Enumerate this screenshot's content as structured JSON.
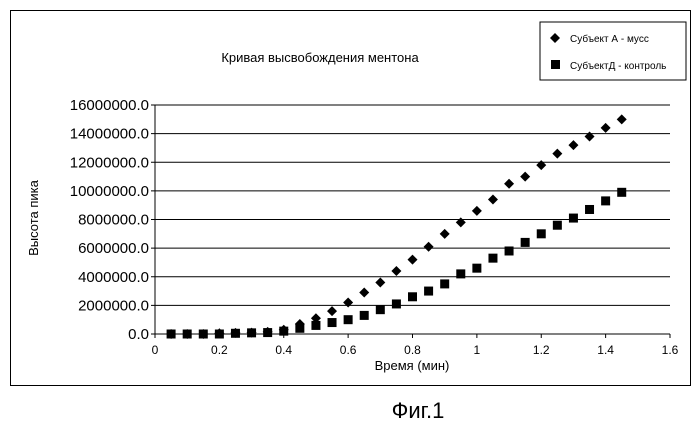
{
  "chart_data": {
    "type": "scatter",
    "title": "Кривая высвобождения ментона",
    "xlabel": "Время (мин)",
    "ylabel": "Высота пика",
    "xlim": [
      0,
      1.6
    ],
    "ylim": [
      0,
      16000000
    ],
    "x_ticks": [
      "0",
      "0.2",
      "0.4",
      "0.6",
      "0.8",
      "1",
      "1.2",
      "1.4",
      "1.6"
    ],
    "y_ticks": [
      "0.0",
      "2000000.0",
      "4000000.0",
      "6000000.0",
      "8000000.0",
      "10000000.0",
      "12000000.0",
      "14000000.0",
      "16000000.0"
    ],
    "grid": "horizontal",
    "legend_position": "top-right",
    "series": [
      {
        "name": "Субъект А - мусс",
        "marker": "diamond",
        "points": [
          [
            0.05,
            0
          ],
          [
            0.1,
            0
          ],
          [
            0.15,
            0
          ],
          [
            0.2,
            50000
          ],
          [
            0.25,
            80000
          ],
          [
            0.3,
            100000
          ],
          [
            0.35,
            150000
          ],
          [
            0.4,
            300000
          ],
          [
            0.45,
            700000
          ],
          [
            0.5,
            1100000
          ],
          [
            0.55,
            1600000
          ],
          [
            0.6,
            2200000
          ],
          [
            0.65,
            2900000
          ],
          [
            0.7,
            3600000
          ],
          [
            0.75,
            4400000
          ],
          [
            0.8,
            5200000
          ],
          [
            0.85,
            6100000
          ],
          [
            0.9,
            7000000
          ],
          [
            0.95,
            7800000
          ],
          [
            1.0,
            8600000
          ],
          [
            1.05,
            9400000
          ],
          [
            1.1,
            10500000
          ],
          [
            1.15,
            11000000
          ],
          [
            1.2,
            11800000
          ],
          [
            1.25,
            12600000
          ],
          [
            1.3,
            13200000
          ],
          [
            1.35,
            13800000
          ],
          [
            1.4,
            14400000
          ],
          [
            1.45,
            15000000
          ]
        ]
      },
      {
        "name": "СубъектД - контроль",
        "marker": "square",
        "points": [
          [
            0.05,
            0
          ],
          [
            0.1,
            0
          ],
          [
            0.15,
            0
          ],
          [
            0.2,
            0
          ],
          [
            0.25,
            50000
          ],
          [
            0.3,
            80000
          ],
          [
            0.35,
            100000
          ],
          [
            0.4,
            200000
          ],
          [
            0.45,
            400000
          ],
          [
            0.5,
            600000
          ],
          [
            0.55,
            800000
          ],
          [
            0.6,
            1000000
          ],
          [
            0.65,
            1300000
          ],
          [
            0.7,
            1700000
          ],
          [
            0.75,
            2100000
          ],
          [
            0.8,
            2600000
          ],
          [
            0.85,
            3000000
          ],
          [
            0.9,
            3500000
          ],
          [
            0.95,
            4200000
          ],
          [
            1.0,
            4600000
          ],
          [
            1.05,
            5300000
          ],
          [
            1.1,
            5800000
          ],
          [
            1.15,
            6400000
          ],
          [
            1.2,
            7000000
          ],
          [
            1.25,
            7600000
          ],
          [
            1.3,
            8100000
          ],
          [
            1.35,
            8700000
          ],
          [
            1.4,
            9300000
          ],
          [
            1.45,
            9900000
          ]
        ]
      }
    ]
  },
  "figure_caption": "Фиг.1",
  "colors": {
    "marker": "#000000",
    "grid": "#000000",
    "background": "#ffffff"
  }
}
